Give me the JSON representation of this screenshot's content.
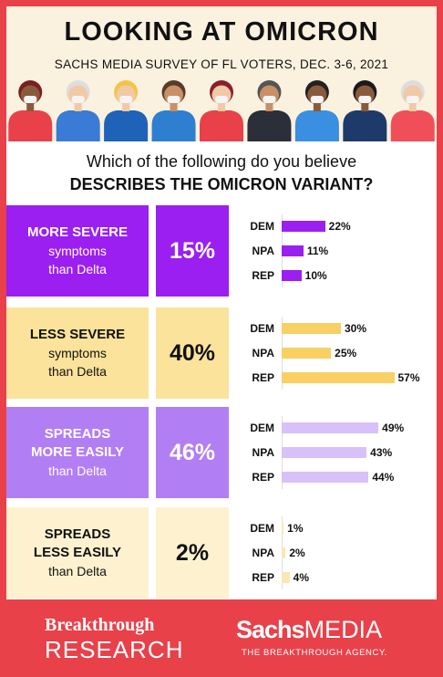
{
  "header": {
    "title": "LOOKING AT OMICRON",
    "subtitle": "SACHS MEDIA SURVEY OF FL VOTERS, DEC. 3-6, 2021"
  },
  "question": {
    "line1": "Which of the following do you believe",
    "line2": "DESCRIBES THE OMICRON VARIANT?"
  },
  "chart_data": {
    "type": "bar",
    "title": "LOOKING AT OMICRON",
    "subtitle": "SACHS MEDIA SURVEY OF FL VOTERS, DEC. 3-6, 2021",
    "categories": [
      "DEM",
      "NPA",
      "REP"
    ],
    "xlim": [
      0,
      60
    ],
    "groups": [
      {
        "bold": "MORE SEVERE",
        "normal": "symptoms",
        "normal2": "than Delta",
        "total": "15%",
        "total_value": 15,
        "bars": [
          {
            "party": "DEM",
            "value": 22,
            "label": "22%"
          },
          {
            "party": "NPA",
            "value": 11,
            "label": "11%"
          },
          {
            "party": "REP",
            "value": 10,
            "label": "10%"
          }
        ],
        "label_bg": "#9a1ff0",
        "total_bg": "#9a1ff0",
        "label_color": "#ffffff",
        "total_color": "#ffffff",
        "bar_color": "#9a1ff0"
      },
      {
        "bold": "LESS SEVERE",
        "normal": "symptoms",
        "normal2": "than Delta",
        "total": "40%",
        "total_value": 40,
        "bars": [
          {
            "party": "DEM",
            "value": 30,
            "label": "30%"
          },
          {
            "party": "NPA",
            "value": 25,
            "label": "25%"
          },
          {
            "party": "REP",
            "value": 57,
            "label": "57%"
          }
        ],
        "label_bg": "#fbe39b",
        "total_bg": "#fbe39b",
        "label_color": "#111111",
        "total_color": "#111111",
        "bar_color": "#f8d063"
      },
      {
        "bold": "SPREADS",
        "bold2": "MORE EASILY",
        "normal": "than Delta",
        "total": "46%",
        "total_value": 46,
        "bars": [
          {
            "party": "DEM",
            "value": 49,
            "label": "49%"
          },
          {
            "party": "NPA",
            "value": 43,
            "label": "43%"
          },
          {
            "party": "REP",
            "value": 44,
            "label": "44%"
          }
        ],
        "label_bg": "#b27ef3",
        "total_bg": "#b27ef3",
        "label_color": "#ffffff",
        "total_color": "#ffffff",
        "bar_color": "#d8c1f8"
      },
      {
        "bold": "SPREADS",
        "bold2": "LESS EASILY",
        "normal": "than Delta",
        "total": "2%",
        "total_value": 2,
        "bars": [
          {
            "party": "DEM",
            "value": 1,
            "label": "1%"
          },
          {
            "party": "NPA",
            "value": 2,
            "label": "2%"
          },
          {
            "party": "REP",
            "value": 4,
            "label": "4%"
          }
        ],
        "label_bg": "#fdf1cf",
        "total_bg": "#fdf1cf",
        "label_color": "#111111",
        "total_color": "#111111",
        "bar_color": "#fbe7b3"
      }
    ]
  },
  "footer": {
    "brand1_line1": "Breakthrough",
    "brand1_line2": "RESEARCH",
    "brand2_bold": "Sachs",
    "brand2_light": "MEDIA",
    "brand2_tagline": "THE BREAKTHROUGH AGENCY."
  },
  "colors": {
    "accent_red": "#e8414a",
    "header_bg": "#fbf1df"
  },
  "people_colors": [
    {
      "shirt": "#e8414a",
      "skin": "#8a5a3c",
      "hair": "#7a1f1f"
    },
    {
      "shirt": "#3a7bd5",
      "skin": "#f1c9a5",
      "hair": "#dddddd"
    },
    {
      "shirt": "#1e63b8",
      "skin": "#f1c9a5",
      "hair": "#f3c447"
    },
    {
      "shirt": "#2f7fd0",
      "skin": "#c98f65",
      "hair": "#5a3a2a"
    },
    {
      "shirt": "#e8414a",
      "skin": "#f1c9a5",
      "hair": "#8a1f2a"
    },
    {
      "shirt": "#2a2f3a",
      "skin": "#c98f65",
      "hair": "#555555"
    },
    {
      "shirt": "#3a8fe0",
      "skin": "#8a5a3c",
      "hair": "#222222"
    },
    {
      "shirt": "#1e3a6a",
      "skin": "#8a5a3c",
      "hair": "#1a1a1a"
    },
    {
      "shirt": "#f04f5a",
      "skin": "#f1c9a5",
      "hair": "#dddddd"
    }
  ]
}
